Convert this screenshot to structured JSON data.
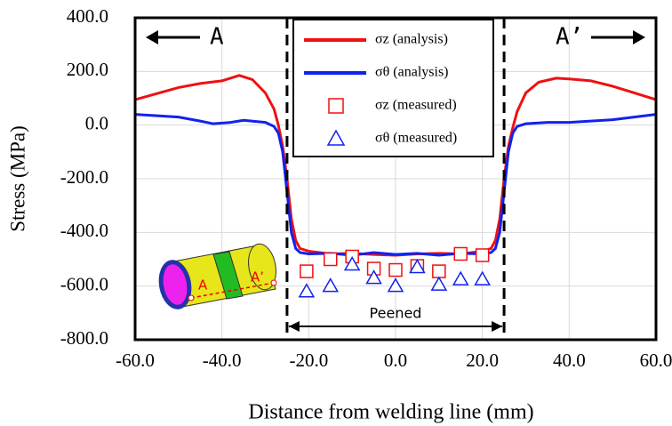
{
  "chart_data": {
    "type": "line",
    "x_label": "Distance from welding line (mm)",
    "y_label": "Stress (MPa)",
    "xlim": [
      -60,
      60
    ],
    "ylim": [
      -800,
      400
    ],
    "xticks": [
      {
        "value": -60,
        "label": "-60.0"
      },
      {
        "value": -40,
        "label": "-40.0"
      },
      {
        "value": -20,
        "label": "-20.0"
      },
      {
        "value": 0,
        "label": "0.0"
      },
      {
        "value": 20,
        "label": "20.0"
      },
      {
        "value": 40,
        "label": "40.0"
      },
      {
        "value": 60,
        "label": "60.0"
      }
    ],
    "yticks": [
      {
        "value": -800,
        "label": "-800.0"
      },
      {
        "value": -600,
        "label": "-600.0"
      },
      {
        "value": -400,
        "label": "-400.0"
      },
      {
        "value": -200,
        "label": "-200.0"
      },
      {
        "value": 0,
        "label": "0.0"
      },
      {
        "value": 200,
        "label": "200.0"
      },
      {
        "value": 400,
        "label": "400.0"
      }
    ],
    "grid": true,
    "peened_range": [
      -25,
      25
    ],
    "annotations": {
      "left_arrow": "A",
      "right_arrow": "A’",
      "peened": "Peened",
      "inset_a": "A",
      "inset_a_prime": "A’"
    },
    "series": [
      {
        "name": "σz (analysis)",
        "color": "#ee1111",
        "style": "line",
        "x": [
          -60,
          -50,
          -45,
          -40,
          -36,
          -33,
          -30,
          -28,
          -27,
          -26,
          -25,
          -24,
          -23,
          -22,
          -20,
          -15,
          -10,
          -5,
          0,
          5,
          10,
          15,
          20,
          22,
          23,
          24,
          25,
          26,
          27,
          28,
          30,
          33,
          37,
          40,
          45,
          50,
          55,
          60
        ],
        "values": [
          95,
          140,
          155,
          165,
          185,
          170,
          120,
          60,
          0,
          -80,
          -200,
          -350,
          -430,
          -460,
          -470,
          -480,
          -478,
          -482,
          -485,
          -480,
          -478,
          -480,
          -470,
          -460,
          -430,
          -350,
          -200,
          -80,
          -10,
          50,
          120,
          160,
          175,
          172,
          165,
          145,
          120,
          95
        ]
      },
      {
        "name": "σθ (analysis)",
        "color": "#1122ee",
        "style": "line",
        "x": [
          -60,
          -50,
          -45,
          -42,
          -38,
          -35,
          -30,
          -28,
          -27,
          -26,
          -25,
          -24,
          -23,
          -22,
          -20,
          -15,
          -10,
          -5,
          0,
          5,
          10,
          15,
          20,
          22,
          23,
          24,
          25,
          26,
          27,
          28,
          30,
          35,
          40,
          45,
          50,
          55,
          60
        ],
        "values": [
          40,
          30,
          15,
          5,
          10,
          18,
          10,
          -5,
          -30,
          -100,
          -250,
          -400,
          -460,
          -475,
          -480,
          -478,
          -485,
          -475,
          -482,
          -478,
          -485,
          -478,
          -480,
          -475,
          -460,
          -400,
          -250,
          -100,
          -30,
          -5,
          5,
          10,
          10,
          15,
          20,
          30,
          40
        ]
      },
      {
        "name": "σz (measured)",
        "color": "#ee1111",
        "style": "square",
        "x": [
          -20.5,
          -15,
          -10,
          -5,
          0,
          5,
          10,
          15,
          20
        ],
        "values": [
          -545,
          -500,
          -490,
          -535,
          -540,
          -525,
          -545,
          -480,
          -485
        ]
      },
      {
        "name": "σθ (measured)",
        "color": "#1122ee",
        "style": "triangle",
        "x": [
          -20.5,
          -15,
          -10,
          -5,
          0,
          5,
          10,
          15,
          20
        ],
        "values": [
          -620,
          -600,
          -520,
          -570,
          -600,
          -530,
          -595,
          -575,
          -575
        ]
      }
    ]
  }
}
